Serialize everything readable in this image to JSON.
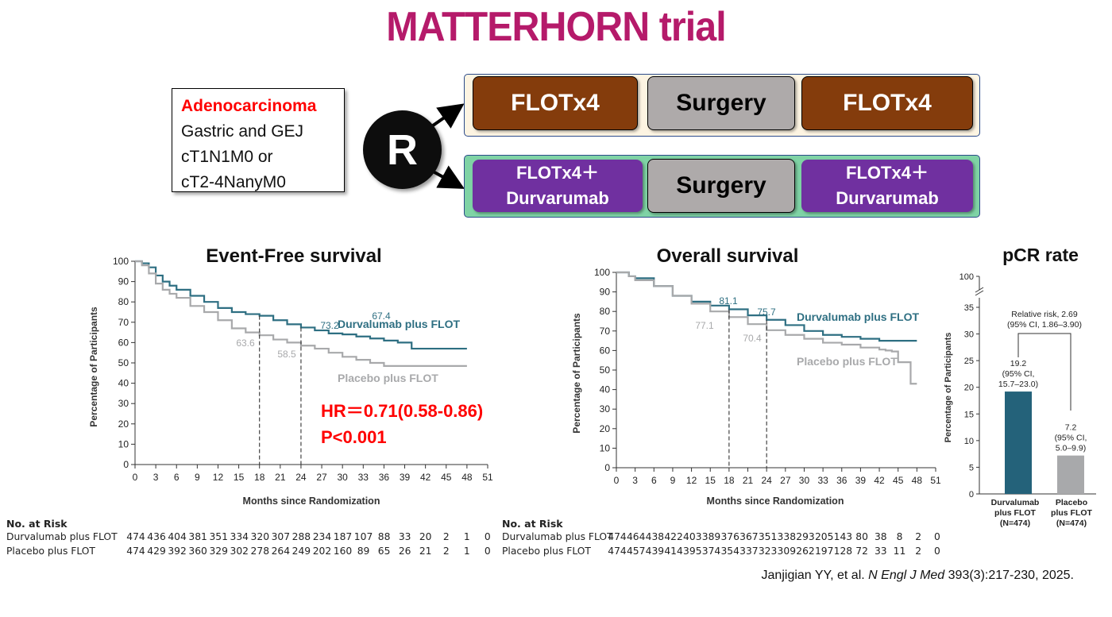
{
  "title": "MATTERHORN trial",
  "criteria": {
    "lines": [
      "Adenocarcinoma",
      "Gastric and GEJ",
      "cT1N1M0 or",
      "cT2-4NanyM0"
    ]
  },
  "randomization_label": "R",
  "arms": [
    {
      "boxes": [
        "FLOTx4",
        "Surgery",
        "FLOTx4"
      ]
    },
    {
      "boxes": [
        "FLOTx4＋\nDurvarumab",
        "Surgery",
        "FLOTx4＋\nDurvarumab"
      ]
    }
  ],
  "colors": {
    "title": "#b51a6a",
    "durvalumab": "#2e6f82",
    "placebo": "#a8a9ab",
    "pcr_durvalumab": "#24627a",
    "hr_text": "#ff0000"
  },
  "chart_data": [
    {
      "type": "line",
      "title": "Event-Free survival",
      "xlabel": "Months since Randomization",
      "ylabel": "Percentage of Participants",
      "xlim": [
        0,
        51
      ],
      "ylim": [
        0,
        100
      ],
      "x_ticks": [
        0,
        3,
        6,
        9,
        12,
        15,
        18,
        21,
        24,
        27,
        30,
        33,
        36,
        39,
        42,
        45,
        48,
        51
      ],
      "y_ticks": [
        0,
        10,
        20,
        30,
        40,
        50,
        60,
        70,
        80,
        90,
        100
      ],
      "series": [
        {
          "name": "Durvalumab plus FLOT",
          "x": [
            0,
            1,
            2,
            3,
            4,
            5,
            6,
            8,
            10,
            12,
            14,
            16,
            18,
            20,
            22,
            24,
            26,
            28,
            30,
            32,
            34,
            36,
            38,
            40,
            42,
            44,
            46,
            48
          ],
          "y": [
            100,
            99,
            97,
            93,
            90,
            88,
            86,
            83,
            80,
            77,
            75,
            74,
            73.2,
            71,
            69,
            67.4,
            66,
            64.5,
            64,
            63,
            62,
            61,
            60,
            57,
            57,
            57,
            57,
            57
          ]
        },
        {
          "name": "Placebo plus FLOT",
          "x": [
            0,
            1,
            2,
            3,
            4,
            5,
            6,
            8,
            10,
            12,
            14,
            16,
            18,
            20,
            22,
            24,
            26,
            28,
            30,
            32,
            34,
            36,
            38,
            40,
            42,
            44,
            46,
            48
          ],
          "y": [
            100,
            98,
            94,
            89,
            86,
            84,
            82,
            78,
            75,
            71,
            67,
            65,
            63.6,
            61.5,
            60,
            58.5,
            57,
            55,
            53,
            51.5,
            50,
            48.5,
            48.5,
            48.5,
            48.5,
            48.5,
            48.5,
            48.5
          ]
        }
      ],
      "annotations": [
        "73.2",
        "67.4",
        "63.6",
        "58.5",
        "HR＝0.71(0.58-0.86)",
        "P<0.001"
      ],
      "grid": false,
      "legend": "inline"
    },
    {
      "type": "line",
      "title": "Overall survival",
      "xlabel": "Months since Randomization",
      "ylabel": "Percentage of Participants",
      "xlim": [
        0,
        51
      ],
      "ylim": [
        0,
        100
      ],
      "x_ticks": [
        0,
        3,
        6,
        9,
        12,
        15,
        18,
        21,
        24,
        27,
        30,
        33,
        36,
        39,
        42,
        45,
        48,
        51
      ],
      "y_ticks": [
        0,
        10,
        20,
        30,
        40,
        50,
        60,
        70,
        80,
        90,
        100
      ],
      "series": [
        {
          "name": "Durvalumab plus FLOT",
          "x": [
            0,
            2,
            3,
            6,
            9,
            12,
            15,
            18,
            21,
            24,
            27,
            30,
            33,
            36,
            39,
            42,
            45,
            48
          ],
          "y": [
            100,
            98,
            97,
            93,
            88,
            85,
            83,
            81.1,
            78,
            75.7,
            73,
            70,
            68,
            67,
            66,
            65,
            65,
            65
          ]
        },
        {
          "name": "Placebo plus FLOT",
          "x": [
            0,
            2,
            3,
            6,
            9,
            12,
            15,
            18,
            21,
            24,
            27,
            30,
            33,
            36,
            39,
            42,
            43,
            44,
            45,
            46,
            47,
            48
          ],
          "y": [
            100,
            98,
            96,
            93,
            88,
            84,
            80,
            77.1,
            73.5,
            70.4,
            68,
            66,
            64,
            63,
            61.5,
            60.5,
            60,
            59.5,
            54,
            54,
            43,
            43
          ]
        }
      ],
      "annotations": [
        "81.1",
        "75.7",
        "77.1",
        "70.4"
      ],
      "grid": false,
      "legend": "inline"
    },
    {
      "type": "bar",
      "title": "pCR rate",
      "ylabel": "Percentage of Participants",
      "categories": [
        "Durvalumab\nplus FLOT\n(N=474)",
        "Placebo\nplus FLOT\n(N=474)"
      ],
      "values": [
        19.2,
        7.2
      ],
      "bar_labels": [
        "19.2\n(95% CI,\n15.7–23.0)",
        "7.2\n(95% CI,\n5.0–9.9)"
      ],
      "y_ticks": [
        0,
        5,
        10,
        15,
        20,
        25,
        30,
        35,
        100
      ],
      "ylim": [
        0,
        35
      ],
      "axis_break": true,
      "annotation": "Relative risk, 2.69\n(95% CI, 1.86–3.90)"
    }
  ],
  "risk_tables": [
    {
      "header": "No. at Risk",
      "rows": [
        {
          "label": "Durvalumab plus FLOT",
          "values": [
            "474",
            "436",
            "404",
            "381",
            "351",
            "334",
            "320",
            "307",
            "288",
            "234",
            "187",
            "107",
            "88",
            "33",
            "20",
            "2",
            "1",
            "0"
          ]
        },
        {
          "label": "Placebo plus FLOT",
          "values": [
            "474",
            "429",
            "392",
            "360",
            "329",
            "302",
            "278",
            "264",
            "249",
            "202",
            "160",
            "89",
            "65",
            "26",
            "21",
            "2",
            "1",
            "0"
          ]
        }
      ]
    },
    {
      "header": "No. at Risk",
      "rows": [
        {
          "label": "Durvalumab plus FLOT",
          "values": [
            "474",
            "464",
            "438",
            "422",
            "403",
            "389",
            "376",
            "367",
            "351",
            "338",
            "293",
            "205",
            "143",
            "80",
            "38",
            "8",
            "2",
            "0"
          ]
        },
        {
          "label": "Placebo plus FLOT",
          "values": [
            "474",
            "457",
            "439",
            "414",
            "395",
            "374",
            "354",
            "337",
            "323",
            "309",
            "262",
            "197",
            "128",
            "72",
            "33",
            "11",
            "2",
            "0"
          ]
        }
      ]
    }
  ],
  "citation": {
    "authors": "Janjigian YY, et al. ",
    "journal": "N Engl J Med",
    "details": " 393(3):217-230, 2025."
  }
}
